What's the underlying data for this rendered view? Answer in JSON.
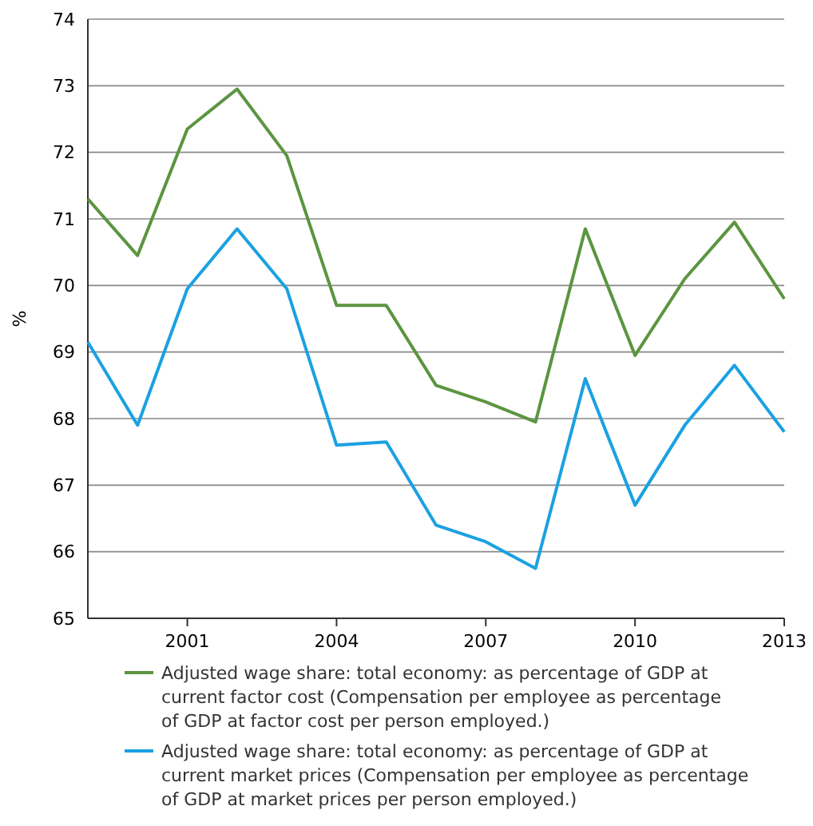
{
  "chart_data": {
    "type": "line",
    "ylabel": "%",
    "x": [
      1999,
      2000,
      2001,
      2002,
      2003,
      2004,
      2005,
      2006,
      2007,
      2008,
      2009,
      2010,
      2011,
      2012,
      2013
    ],
    "xlim": [
      1999,
      2013
    ],
    "xticks": [
      2001,
      2004,
      2007,
      2010,
      2013
    ],
    "ylim": [
      65,
      74
    ],
    "yticks": [
      65,
      66,
      67,
      68,
      69,
      70,
      71,
      72,
      73,
      74
    ],
    "grid": "y",
    "legend": "bottom",
    "series": [
      {
        "name": "Adjusted wage share: total economy: as percentage of GDP at current factor cost (Compensation per employee as percentage of GDP at factor cost per person employed.)",
        "color": "#5b9540",
        "values": [
          71.3,
          70.45,
          72.35,
          72.95,
          71.95,
          69.7,
          69.7,
          68.5,
          68.25,
          67.95,
          70.85,
          68.95,
          70.1,
          70.95,
          69.8
        ]
      },
      {
        "name": "Adjusted wage share: total economy: as percentage of GDP at current market prices (Compensation per employee as percentage of GDP at market prices per person employed.)",
        "color": "#1ba1e2",
        "values": [
          69.15,
          67.9,
          69.95,
          70.85,
          69.95,
          67.6,
          67.65,
          66.4,
          66.15,
          65.75,
          68.6,
          66.7,
          67.9,
          68.8,
          67.8
        ]
      }
    ]
  }
}
